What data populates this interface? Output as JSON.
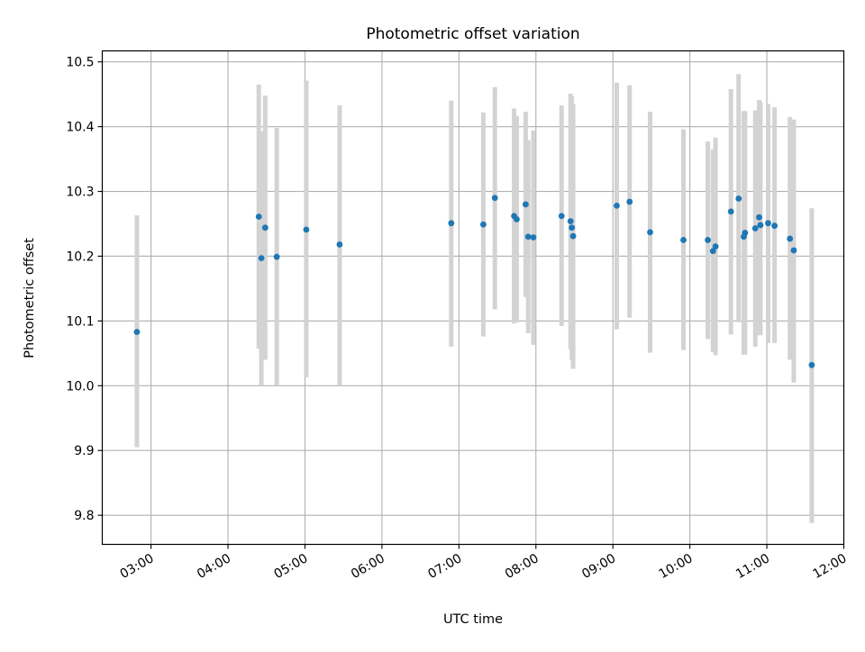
{
  "chart_data": {
    "type": "scatter",
    "title": "Photometric offset variation",
    "xlabel": "UTC time",
    "ylabel": "Photometric offset",
    "x_ticks": [
      "03:00",
      "04:00",
      "05:00",
      "06:00",
      "07:00",
      "08:00",
      "09:00",
      "10:00",
      "11:00",
      "12:00"
    ],
    "y_ticks": [
      "9.8",
      "9.9",
      "10.0",
      "10.1",
      "10.2",
      "10.3",
      "10.4",
      "10.5"
    ],
    "xlim": [
      "02:22",
      "12:00"
    ],
    "ylim": [
      9.755,
      10.517
    ],
    "grid": true,
    "colors": {
      "point": "#1f77b4",
      "errorbar": "#d3d3d3",
      "grid": "#b0b0b0"
    },
    "points": [
      {
        "t": "02:49",
        "y": 10.083,
        "lo": 9.905,
        "hi": 10.263
      },
      {
        "t": "04:24",
        "y": 10.261,
        "lo": 10.057,
        "hi": 10.465
      },
      {
        "t": "04:26",
        "y": 10.197,
        "lo": 10.0,
        "hi": 10.393
      },
      {
        "t": "04:29",
        "y": 10.244,
        "lo": 10.04,
        "hi": 10.448
      },
      {
        "t": "04:38",
        "y": 10.199,
        "lo": 10.0,
        "hi": 10.398
      },
      {
        "t": "05:01",
        "y": 10.241,
        "lo": 10.013,
        "hi": 10.471
      },
      {
        "t": "05:27",
        "y": 10.218,
        "lo": 10.0,
        "hi": 10.433
      },
      {
        "t": "06:54",
        "y": 10.251,
        "lo": 10.06,
        "hi": 10.44
      },
      {
        "t": "07:19",
        "y": 10.249,
        "lo": 10.076,
        "hi": 10.422
      },
      {
        "t": "07:28",
        "y": 10.29,
        "lo": 10.118,
        "hi": 10.461
      },
      {
        "t": "07:43",
        "y": 10.262,
        "lo": 10.096,
        "hi": 10.428
      },
      {
        "t": "07:45",
        "y": 10.257,
        "lo": 10.098,
        "hi": 10.416
      },
      {
        "t": "07:52",
        "y": 10.28,
        "lo": 10.137,
        "hi": 10.423
      },
      {
        "t": "07:54",
        "y": 10.23,
        "lo": 10.081,
        "hi": 10.379
      },
      {
        "t": "07:58",
        "y": 10.229,
        "lo": 10.063,
        "hi": 10.394
      },
      {
        "t": "08:20",
        "y": 10.262,
        "lo": 10.092,
        "hi": 10.433
      },
      {
        "t": "08:27",
        "y": 10.254,
        "lo": 10.057,
        "hi": 10.451
      },
      {
        "t": "08:28",
        "y": 10.244,
        "lo": 10.04,
        "hi": 10.447
      },
      {
        "t": "08:29",
        "y": 10.231,
        "lo": 10.026,
        "hi": 10.435
      },
      {
        "t": "09:03",
        "y": 10.278,
        "lo": 10.087,
        "hi": 10.468
      },
      {
        "t": "09:13",
        "y": 10.284,
        "lo": 10.105,
        "hi": 10.464
      },
      {
        "t": "09:29",
        "y": 10.237,
        "lo": 10.051,
        "hi": 10.423
      },
      {
        "t": "09:55",
        "y": 10.225,
        "lo": 10.055,
        "hi": 10.396
      },
      {
        "t": "10:14",
        "y": 10.225,
        "lo": 10.072,
        "hi": 10.377
      },
      {
        "t": "10:18",
        "y": 10.208,
        "lo": 10.052,
        "hi": 10.365
      },
      {
        "t": "10:20",
        "y": 10.215,
        "lo": 10.047,
        "hi": 10.383
      },
      {
        "t": "10:32",
        "y": 10.269,
        "lo": 10.079,
        "hi": 10.458
      },
      {
        "t": "10:38",
        "y": 10.289,
        "lo": 10.098,
        "hi": 10.481
      },
      {
        "t": "10:42",
        "y": 10.23,
        "lo": 10.048,
        "hi": 10.424
      },
      {
        "t": "10:43",
        "y": 10.236,
        "lo": 10.048,
        "hi": 10.424
      },
      {
        "t": "10:51",
        "y": 10.243,
        "lo": 10.06,
        "hi": 10.425
      },
      {
        "t": "10:54",
        "y": 10.26,
        "lo": 10.078,
        "hi": 10.441
      },
      {
        "t": "10:55",
        "y": 10.248,
        "lo": 10.078,
        "hi": 10.438
      },
      {
        "t": "11:01",
        "y": 10.251,
        "lo": 10.066,
        "hi": 10.435
      },
      {
        "t": "11:06",
        "y": 10.247,
        "lo": 10.066,
        "hi": 10.43
      },
      {
        "t": "11:18",
        "y": 10.227,
        "lo": 10.04,
        "hi": 10.415
      },
      {
        "t": "11:21",
        "y": 10.209,
        "lo": 10.005,
        "hi": 10.411
      },
      {
        "t": "11:35",
        "y": 10.032,
        "lo": 9.788,
        "hi": 10.274
      }
    ]
  }
}
